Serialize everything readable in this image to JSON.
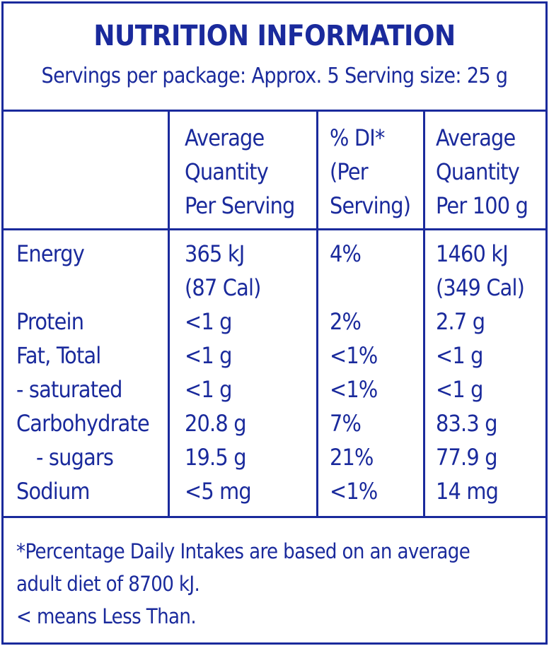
{
  "title": "NUTRITION INFORMATION",
  "servings_line": "Servings per package: Approx. 5 Serving size: 25 g",
  "columns": {
    "per_serving": [
      "Average",
      "Quantity",
      "Per Serving"
    ],
    "di": [
      "% DI*",
      "(Per",
      "Serving)"
    ],
    "per_100g": [
      "Average",
      "Quantity",
      "Per 100 g"
    ]
  },
  "rows": [
    {
      "name": "Energy",
      "serving": "365 kJ",
      "serving_extra": "(87 Cal)",
      "di": "4%",
      "per100": "1460 kJ",
      "per100_extra": "(349 Cal)"
    },
    {
      "name": "Protein",
      "serving": "<1 g",
      "di": "2%",
      "per100": "2.7 g"
    },
    {
      "name": "Fat, Total",
      "serving": "<1 g",
      "di": "<1%",
      "per100": "<1 g"
    },
    {
      "name": "- saturated",
      "serving": "<1 g",
      "di": "<1%",
      "per100": "<1 g"
    },
    {
      "name": "Carbohydrate",
      "serving": "20.8 g",
      "di": "7%",
      "per100": "83.3 g"
    },
    {
      "name": "- sugars",
      "serving": "19.5 g",
      "di": "21%",
      "per100": "77.9 g"
    },
    {
      "name": "Sodium",
      "serving": "<5 mg",
      "di": "<1%",
      "per100": "14 mg"
    }
  ],
  "footnote": [
    "*Percentage Daily Intakes are based on an average",
    "adult diet of 8700 kJ.",
    "< means Less Than."
  ]
}
